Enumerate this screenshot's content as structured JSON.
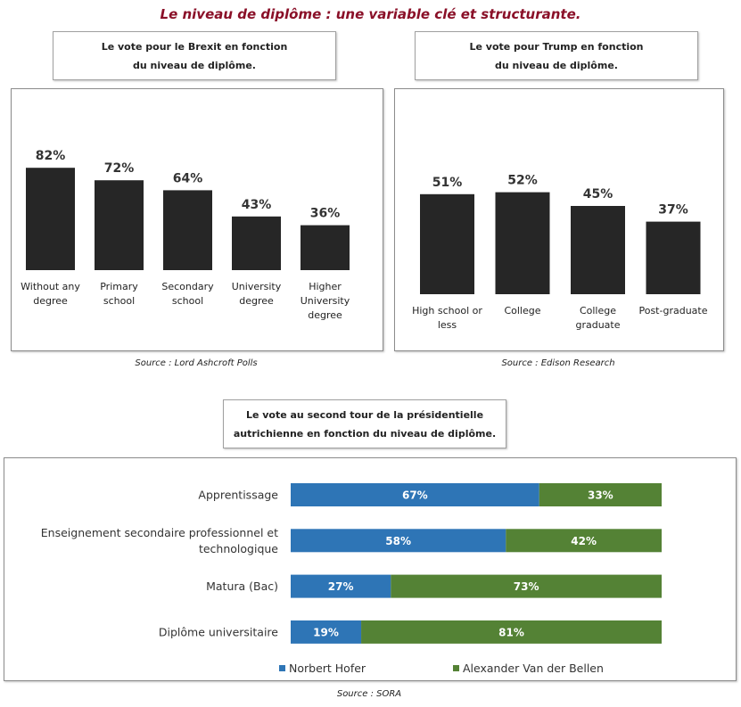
{
  "title": "Le niveau de diplôme : une variable clé et structurante.",
  "colors": {
    "title": "#8a1028",
    "bar": "#262626",
    "hofer": "#2e75b6",
    "vdb": "#548235"
  },
  "brexit": {
    "title_lines": [
      "Le vote pour le Brexit en fonction",
      "du niveau de diplôme."
    ],
    "source": "Source : Lord Ashcroft Polls"
  },
  "trump": {
    "title_lines": [
      "Le vote pour Trump en fonction",
      "du niveau de diplôme."
    ],
    "source": "Source : Edison Research"
  },
  "austria": {
    "title_lines": [
      "Le vote au second tour de la présidentielle",
      "autrichienne en fonction du niveau de diplôme."
    ],
    "source": "Source : SORA"
  },
  "chart_data": [
    {
      "type": "bar",
      "categories": [
        [
          "Without any",
          "degree"
        ],
        [
          "Primary",
          "school"
        ],
        [
          "Secondary",
          "school"
        ],
        [
          "University",
          "degree"
        ],
        [
          "Higher",
          "University",
          "degree"
        ]
      ],
      "values": [
        82,
        72,
        64,
        43,
        36
      ],
      "value_labels": [
        "82%",
        "72%",
        "64%",
        "43%",
        "36%"
      ],
      "ylim": [
        0,
        100
      ]
    },
    {
      "type": "bar",
      "categories": [
        [
          "High school or",
          "less"
        ],
        [
          "College"
        ],
        [
          "College",
          "graduate"
        ],
        [
          "Post-graduate"
        ]
      ],
      "values": [
        51,
        52,
        45,
        37
      ],
      "value_labels": [
        "51%",
        "52%",
        "45%",
        "37%"
      ],
      "ylim": [
        0,
        100
      ]
    },
    {
      "type": "bar",
      "orientation": "horizontal",
      "stacked": true,
      "categories": [
        [
          "Apprentissage"
        ],
        [
          "Enseignement secondaire professionnel et",
          "technologique"
        ],
        [
          "Matura (Bac)"
        ],
        [
          "Diplôme universitaire"
        ]
      ],
      "series": [
        {
          "name": "Norbert Hofer",
          "values": [
            67,
            58,
            27,
            19
          ],
          "labels": [
            "67%",
            "58%",
            "27%",
            "19%"
          ]
        },
        {
          "name": "Alexander Van der Bellen",
          "values": [
            33,
            42,
            73,
            81
          ],
          "labels": [
            "33%",
            "42%",
            "73%",
            "81%"
          ]
        }
      ],
      "xlim": [
        0,
        100
      ],
      "legend": "bottom"
    }
  ]
}
